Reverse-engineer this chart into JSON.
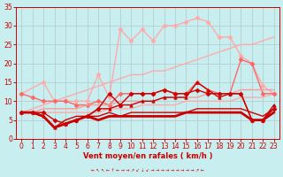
{
  "background_color": "#c8eef0",
  "grid_color": "#b0c8cc",
  "xlabel": "Vent moyen/en rafales ( km/h )",
  "xlabel_color": "#cc0000",
  "tick_color": "#cc0000",
  "xlim": [
    -0.5,
    23.5
  ],
  "ylim": [
    0,
    35
  ],
  "yticks": [
    0,
    5,
    10,
    15,
    20,
    25,
    30,
    35
  ],
  "xticks": [
    0,
    1,
    2,
    3,
    4,
    5,
    6,
    7,
    8,
    9,
    10,
    11,
    12,
    13,
    14,
    15,
    16,
    17,
    18,
    19,
    20,
    21,
    22,
    23
  ],
  "lines": [
    {
      "x": [
        0,
        1,
        2,
        3,
        4,
        5,
        6,
        7,
        8,
        9,
        10,
        11,
        12,
        13,
        14,
        15,
        16,
        17,
        18,
        19,
        20,
        21,
        22,
        23
      ],
      "y": [
        7,
        8,
        9,
        10,
        11,
        12,
        13,
        14,
        15,
        16,
        17,
        17,
        18,
        18,
        19,
        20,
        21,
        22,
        23,
        24,
        25,
        25,
        26,
        27
      ],
      "color": "#ffaaaa",
      "lw": 1.0,
      "marker": null,
      "ms": 0,
      "alpha": 1.0
    },
    {
      "x": [
        0,
        1,
        2,
        3,
        4,
        5,
        6,
        7,
        8,
        9,
        10,
        11,
        12,
        13,
        14,
        15,
        16,
        17,
        18,
        19,
        20,
        21,
        22,
        23
      ],
      "y": [
        7,
        7,
        7,
        7,
        7,
        7,
        7,
        7,
        8,
        8,
        8,
        9,
        9,
        9,
        9,
        10,
        10,
        10,
        10,
        10,
        11,
        11,
        11,
        12
      ],
      "color": "#ffaaaa",
      "lw": 1.0,
      "marker": null,
      "ms": 0,
      "alpha": 1.0
    },
    {
      "x": [
        0,
        2,
        3,
        4,
        5,
        6,
        7,
        8,
        9,
        10,
        11,
        12,
        13,
        14,
        15,
        16,
        17,
        18,
        19,
        20,
        21,
        22,
        23
      ],
      "y": [
        12,
        15,
        10,
        10,
        10,
        10,
        17,
        11,
        29,
        26,
        29,
        26,
        30,
        30,
        31,
        32,
        31,
        27,
        27,
        22,
        20,
        14,
        12
      ],
      "color": "#ffaaaa",
      "lw": 1.0,
      "marker": "D",
      "ms": 2.5,
      "alpha": 1.0
    },
    {
      "x": [
        0,
        1,
        2,
        3,
        4,
        5,
        6,
        7,
        8,
        9,
        10,
        11,
        12,
        13,
        14,
        15,
        16,
        17,
        18,
        19,
        20,
        21,
        22,
        23
      ],
      "y": [
        12,
        11,
        10,
        10,
        10,
        9,
        9,
        10,
        9,
        12,
        12,
        12,
        12,
        13,
        12,
        12,
        15,
        13,
        12,
        12,
        21,
        20,
        12,
        12
      ],
      "color": "#ff6666",
      "lw": 1.0,
      "marker": "D",
      "ms": 2.5,
      "alpha": 1.0
    },
    {
      "x": [
        0,
        1,
        2,
        3,
        4,
        5,
        6,
        7,
        8,
        9,
        10,
        11,
        12,
        13,
        14,
        15,
        16,
        17,
        18,
        19,
        20,
        21,
        22,
        23
      ],
      "y": [
        7,
        7,
        8,
        8,
        8,
        8,
        9,
        9,
        9,
        10,
        10,
        10,
        10,
        11,
        11,
        11,
        11,
        12,
        12,
        12,
        13,
        13,
        13,
        13
      ],
      "color": "#ff9999",
      "lw": 1.0,
      "marker": null,
      "ms": 0,
      "alpha": 1.0
    },
    {
      "x": [
        0,
        1,
        2,
        3,
        4,
        5,
        6,
        7,
        8,
        9,
        10,
        11,
        12,
        13,
        14,
        15,
        16,
        17,
        18,
        19,
        20,
        21,
        22,
        23
      ],
      "y": [
        7,
        7,
        7,
        5,
        4,
        5,
        6,
        8,
        12,
        9,
        12,
        12,
        12,
        13,
        12,
        12,
        13,
        12,
        12,
        12,
        12,
        5,
        5,
        8
      ],
      "color": "#cc0000",
      "lw": 1.0,
      "marker": "D",
      "ms": 2.5,
      "alpha": 1.0
    },
    {
      "x": [
        0,
        1,
        2,
        3,
        4,
        5,
        6,
        7,
        8,
        9,
        10,
        11,
        12,
        13,
        14,
        15,
        16,
        17,
        18,
        19,
        20,
        21,
        22,
        23
      ],
      "y": [
        7,
        7,
        6,
        3,
        4,
        5,
        6,
        5,
        6,
        6,
        6,
        6,
        6,
        6,
        6,
        7,
        7,
        7,
        7,
        7,
        7,
        5,
        5,
        7
      ],
      "color": "#cc0000",
      "lw": 2.0,
      "marker": null,
      "ms": 0,
      "alpha": 1.0
    },
    {
      "x": [
        0,
        1,
        2,
        3,
        4,
        5,
        6,
        7,
        8,
        9,
        10,
        11,
        12,
        13,
        14,
        15,
        16,
        17,
        18,
        19,
        20,
        21,
        22,
        23
      ],
      "y": [
        7,
        7,
        6,
        3,
        5,
        6,
        6,
        6,
        7,
        6,
        7,
        7,
        7,
        7,
        7,
        7,
        8,
        8,
        8,
        8,
        8,
        7,
        6,
        8
      ],
      "color": "#cc0000",
      "lw": 1.0,
      "marker": null,
      "ms": 0,
      "alpha": 1.0
    },
    {
      "x": [
        0,
        1,
        2,
        3,
        4,
        5,
        6,
        7,
        8,
        9,
        10,
        11,
        12,
        13,
        14,
        15,
        16,
        17,
        18,
        19,
        20,
        21,
        22,
        23
      ],
      "y": [
        7,
        7,
        6,
        3,
        4,
        5,
        6,
        8,
        8,
        9,
        9,
        10,
        10,
        11,
        11,
        11,
        15,
        13,
        11,
        12,
        12,
        5,
        5,
        9
      ],
      "color": "#cc0000",
      "lw": 1.0,
      "marker": "^",
      "ms": 2.5,
      "alpha": 1.0
    }
  ]
}
